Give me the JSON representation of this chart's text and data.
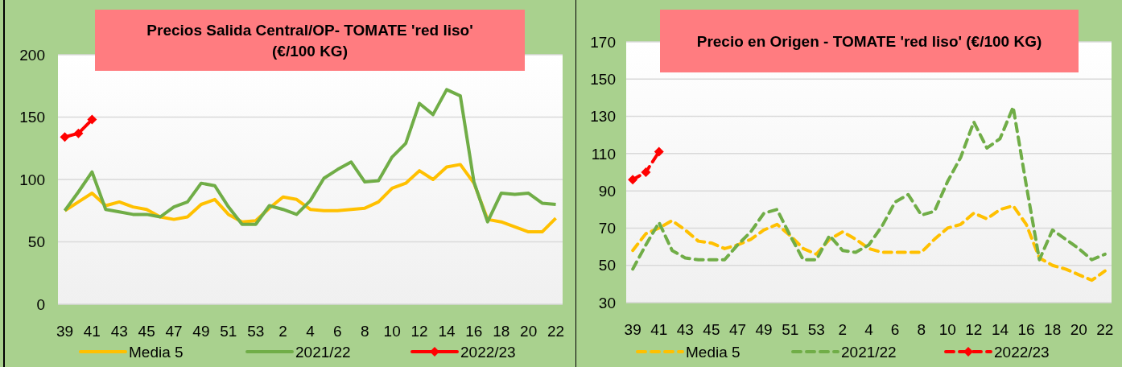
{
  "chart_data": [
    {
      "type": "line",
      "title": "Precios Salida Central/OP- TOMATE 'red liso' (€/100 KG)",
      "categories": [
        "39",
        null,
        "41",
        null,
        "43",
        null,
        "45",
        null,
        "47",
        null,
        "49",
        null,
        "51",
        null,
        "53",
        null,
        "2",
        null,
        "4",
        null,
        "6",
        null,
        "8",
        null,
        "10",
        null,
        "12",
        null,
        "14",
        null,
        "16",
        null,
        "18",
        null,
        "20",
        null,
        "22"
      ],
      "series": [
        {
          "name": "Media 5",
          "color": "#ffc000",
          "line_style": "solid",
          "marker": "none",
          "values": [
            75,
            82,
            89,
            79,
            82,
            78,
            76,
            70,
            68,
            70,
            80,
            84,
            72,
            66,
            67,
            77,
            86,
            84,
            76,
            75,
            75,
            76,
            77,
            82,
            93,
            97,
            107,
            100,
            110,
            112,
            97,
            68,
            66,
            62,
            58,
            58,
            69
          ]
        },
        {
          "name": "2021/22",
          "color": "#70ad47",
          "line_style": "solid",
          "marker": "none",
          "values": [
            75,
            90,
            106,
            76,
            74,
            72,
            72,
            70,
            78,
            82,
            97,
            95,
            78,
            64,
            64,
            79,
            76,
            72,
            83,
            101,
            108,
            114,
            98,
            99,
            118,
            129,
            161,
            152,
            172,
            167,
            98,
            66,
            89,
            88,
            89,
            81,
            80
          ]
        },
        {
          "name": "2022/23",
          "color": "#ff0000",
          "line_style": "solid",
          "marker": "diamond",
          "values": [
            134,
            137,
            148,
            null,
            null,
            null,
            null,
            null,
            null,
            null,
            null,
            null,
            null,
            null,
            null,
            null,
            null,
            null,
            null,
            null,
            null,
            null,
            null,
            null,
            null,
            null,
            null,
            null,
            null,
            null,
            null,
            null,
            null,
            null,
            null,
            null,
            null
          ]
        }
      ],
      "ylim": [
        0,
        200
      ],
      "yticks": [
        0,
        50,
        100,
        150,
        200
      ],
      "grid": "y",
      "legend": "bottom"
    },
    {
      "type": "line",
      "title": "Precio en Origen - TOMATE 'red liso' (€/100 KG)",
      "categories": [
        "39",
        null,
        "41",
        null,
        "43",
        null,
        "45",
        null,
        "47",
        null,
        "49",
        null,
        "51",
        null,
        "53",
        null,
        "2",
        null,
        "4",
        null,
        "6",
        null,
        "8",
        null,
        "10",
        null,
        "12",
        null,
        "14",
        null,
        "16",
        null,
        "18",
        null,
        "20",
        null,
        "22"
      ],
      "series": [
        {
          "name": "Media 5",
          "color": "#ffc000",
          "line_style": "dashed",
          "marker": "none",
          "values": [
            58,
            67,
            70,
            74,
            69,
            63,
            62,
            59,
            61,
            64,
            69,
            72,
            66,
            59,
            56,
            64,
            68,
            64,
            59,
            57,
            57,
            57,
            57,
            64,
            70,
            72,
            78,
            75,
            80,
            82,
            72,
            54,
            50,
            48,
            45,
            42,
            47
          ]
        },
        {
          "name": "2021/22",
          "color": "#70ad47",
          "line_style": "dashed",
          "marker": "none",
          "values": [
            48,
            61,
            73,
            58,
            54,
            53,
            53,
            53,
            61,
            68,
            78,
            80,
            66,
            53,
            53,
            66,
            58,
            57,
            61,
            71,
            84,
            88,
            77,
            79,
            95,
            108,
            127,
            113,
            118,
            135,
            93,
            53,
            69,
            64,
            59,
            53,
            56
          ]
        },
        {
          "name": "2022/23",
          "color": "#ff0000",
          "line_style": "dashed",
          "marker": "diamond",
          "values": [
            96,
            100,
            111,
            null,
            null,
            null,
            null,
            null,
            null,
            null,
            null,
            null,
            null,
            null,
            null,
            null,
            null,
            null,
            null,
            null,
            null,
            null,
            null,
            null,
            null,
            null,
            null,
            null,
            null,
            null,
            null,
            null,
            null,
            null,
            null,
            null,
            null
          ]
        }
      ],
      "ylim": [
        30,
        170
      ],
      "yticks": [
        30,
        50,
        70,
        90,
        110,
        130,
        150,
        170
      ],
      "grid": "y",
      "legend": "bottom"
    }
  ]
}
